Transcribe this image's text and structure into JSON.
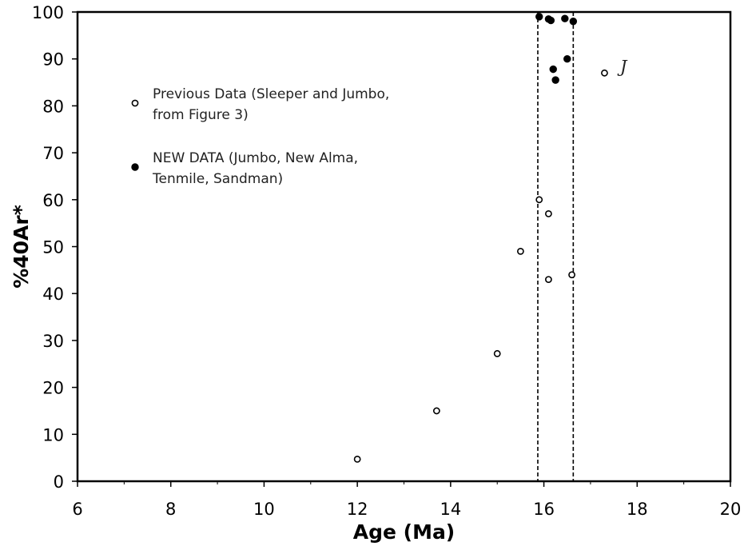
{
  "chart_data": {
    "type": "scatter",
    "xlabel": "Age (Ma)",
    "ylabel": "%40Ar*",
    "xlim": [
      6,
      20
    ],
    "ylim": [
      0,
      100
    ],
    "x_ticks": [
      6,
      8,
      10,
      12,
      14,
      16,
      18,
      20
    ],
    "y_ticks": [
      0,
      10,
      20,
      30,
      40,
      50,
      60,
      70,
      80,
      90,
      100
    ],
    "grid": false,
    "legend_position": "left",
    "vertical_lines": [
      15.87,
      16.63
    ],
    "series": [
      {
        "name": "Previous Data (Sleeper and Jumbo, from Figure 3)",
        "legend_lines": [
          "Previous Data (Sleeper and Jumbo,",
          "from Figure 3)"
        ],
        "marker": "open-circle",
        "points": [
          {
            "x": 12.0,
            "y": 4.7
          },
          {
            "x": 13.7,
            "y": 15.0
          },
          {
            "x": 15.0,
            "y": 27.2
          },
          {
            "x": 15.5,
            "y": 49.0
          },
          {
            "x": 15.9,
            "y": 60.0
          },
          {
            "x": 16.1,
            "y": 57.0
          },
          {
            "x": 16.1,
            "y": 43.0
          },
          {
            "x": 16.6,
            "y": 44.0
          },
          {
            "x": 17.3,
            "y": 87.0
          }
        ]
      },
      {
        "name": "NEW DATA (Jumbo, New Alma, Tenmile, Sandman)",
        "legend_lines": [
          "NEW DATA (Jumbo, New Alma,",
          "Tenmile, Sandman)"
        ],
        "marker": "filled-circle",
        "points": [
          {
            "x": 15.9,
            "y": 99.0
          },
          {
            "x": 16.1,
            "y": 98.5
          },
          {
            "x": 16.15,
            "y": 98.2
          },
          {
            "x": 16.45,
            "y": 98.6
          },
          {
            "x": 16.63,
            "y": 98.0
          },
          {
            "x": 16.2,
            "y": 87.8
          },
          {
            "x": 16.5,
            "y": 90.0
          },
          {
            "x": 16.25,
            "y": 85.5
          }
        ]
      }
    ],
    "annotations": [
      {
        "text": "J",
        "x": 17.6,
        "y": 87.5
      }
    ]
  }
}
